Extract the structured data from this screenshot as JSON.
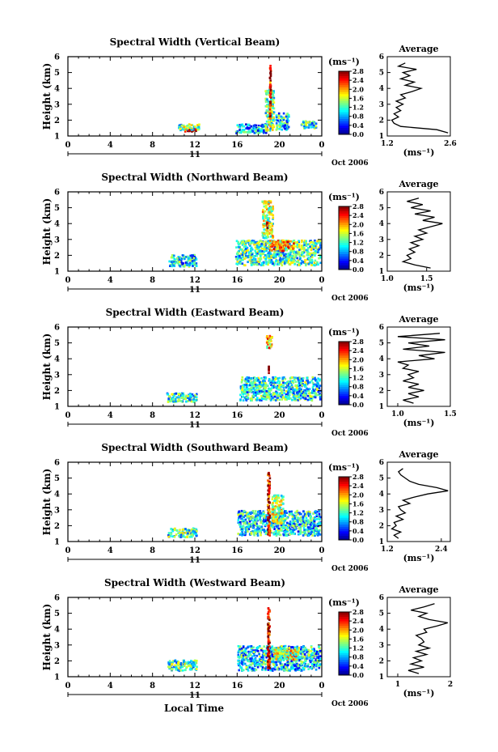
{
  "figure": {
    "x_axis_label": "Local Time",
    "date_label": "Oct 2006",
    "day_label": "11",
    "colorbar_unit": "(ms⁻¹)",
    "profile_title": "Average",
    "profile_unit": "(ms⁻¹)"
  },
  "chart_data": [
    {
      "type": "heatmap",
      "title": "Spectral Width (Vertical Beam)",
      "ylabel": "Height (km)",
      "xlabel": "Local Time",
      "xlim": [
        0,
        24
      ],
      "ylim": [
        1,
        6
      ],
      "x_ticks": [
        "0",
        "4",
        "8",
        "12",
        "16",
        "20",
        "0"
      ],
      "y_ticks": [
        "1",
        "2",
        "3",
        "4",
        "5",
        "6"
      ],
      "colorbar": {
        "unit": "(ms⁻¹)",
        "vmin": 0.0,
        "vmax": 2.8,
        "tick_labels": [
          "0.0",
          "0.4",
          "0.8",
          "1.2",
          "1.6",
          "2.0",
          "2.4",
          "2.8"
        ]
      },
      "patches": [
        {
          "x": [
            11.0,
            12.3
          ],
          "y": [
            1.2,
            1.5
          ],
          "level": 2.7
        },
        {
          "x": [
            10.4,
            12.6
          ],
          "y": [
            1.3,
            1.8
          ],
          "level": 1.3
        },
        {
          "x": [
            15.8,
            19.0
          ],
          "y": [
            1.1,
            1.8
          ],
          "level": 0.9
        },
        {
          "x": [
            18.6,
            19.6
          ],
          "y": [
            1.2,
            4.0
          ],
          "level": 1.4
        },
        {
          "x": [
            19.0,
            19.3
          ],
          "y": [
            2.0,
            5.5
          ],
          "level": 2.5
        },
        {
          "x": [
            19.6,
            21.0
          ],
          "y": [
            1.3,
            2.5
          ],
          "level": 1.0
        },
        {
          "x": [
            22.0,
            23.6
          ],
          "y": [
            1.4,
            2.0
          ],
          "level": 1.1
        }
      ],
      "profile": {
        "xlim": [
          1.2,
          2.6
        ],
        "x_ticks": [
          "1.2",
          "2.6"
        ],
        "height": [
          1.2,
          1.4,
          1.6,
          1.8,
          2.0,
          2.2,
          2.4,
          2.6,
          2.8,
          3.0,
          3.2,
          3.4,
          3.6,
          3.8,
          4.0,
          4.2,
          4.4,
          4.6,
          4.8,
          5.0,
          5.2,
          5.4,
          5.6
        ],
        "width": [
          2.55,
          2.3,
          1.5,
          1.35,
          1.3,
          1.45,
          1.35,
          1.5,
          1.4,
          1.55,
          1.4,
          1.6,
          1.5,
          1.75,
          1.95,
          1.6,
          1.8,
          1.5,
          1.7,
          1.55,
          1.85,
          1.45,
          1.6
        ]
      }
    },
    {
      "type": "heatmap",
      "title": "Spectral Width (Northward Beam)",
      "ylabel": "Height (km)",
      "xlabel": "Local Time",
      "xlim": [
        0,
        24
      ],
      "ylim": [
        1,
        6
      ],
      "x_ticks": [
        "0",
        "4",
        "8",
        "12",
        "16",
        "20",
        "0"
      ],
      "y_ticks": [
        "1",
        "2",
        "3",
        "4",
        "5",
        "6"
      ],
      "colorbar": {
        "unit": "(ms⁻¹)",
        "vmin": 0.0,
        "vmax": 2.8,
        "tick_labels": [
          "0.0",
          "0.4",
          "0.8",
          "1.2",
          "1.6",
          "2.0",
          "2.4",
          "2.8"
        ]
      },
      "patches": [
        {
          "x": [
            9.5,
            12.3
          ],
          "y": [
            1.2,
            2.1
          ],
          "level": 1.0
        },
        {
          "x": [
            15.8,
            24.0
          ],
          "y": [
            1.3,
            3.0
          ],
          "level": 1.2
        },
        {
          "x": [
            18.3,
            19.5
          ],
          "y": [
            3.0,
            5.5
          ],
          "level": 1.5
        },
        {
          "x": [
            18.7,
            19.0
          ],
          "y": [
            3.6,
            4.2
          ],
          "level": 2.7
        },
        {
          "x": [
            19.0,
            21.5
          ],
          "y": [
            2.2,
            3.0
          ],
          "level": 2.0
        }
      ],
      "profile": {
        "xlim": [
          1.0,
          1.8
        ],
        "x_ticks": [
          "1.0",
          "1.5"
        ],
        "height": [
          1.2,
          1.4,
          1.6,
          1.8,
          2.0,
          2.2,
          2.4,
          2.6,
          2.8,
          3.0,
          3.2,
          3.4,
          3.6,
          3.8,
          4.0,
          4.2,
          4.4,
          4.6,
          4.8,
          5.0,
          5.2,
          5.4,
          5.6
        ],
        "width": [
          1.55,
          1.35,
          1.2,
          1.3,
          1.25,
          1.35,
          1.28,
          1.4,
          1.3,
          1.45,
          1.35,
          1.5,
          1.4,
          1.55,
          1.7,
          1.45,
          1.6,
          1.35,
          1.55,
          1.3,
          1.45,
          1.25,
          1.4
        ]
      }
    },
    {
      "type": "heatmap",
      "title": "Spectral Width (Eastward Beam)",
      "ylabel": "Height (km)",
      "xlabel": "Local Time",
      "xlim": [
        0,
        24
      ],
      "ylim": [
        1,
        6
      ],
      "x_ticks": [
        "0",
        "4",
        "8",
        "12",
        "16",
        "20",
        "0"
      ],
      "y_ticks": [
        "1",
        "2",
        "3",
        "4",
        "5",
        "6"
      ],
      "colorbar": {
        "unit": "(ms⁻¹)",
        "vmin": 0.0,
        "vmax": 2.8,
        "tick_labels": [
          "0.0",
          "0.4",
          "0.8",
          "1.2",
          "1.6",
          "2.0",
          "2.4",
          "2.8"
        ]
      },
      "patches": [
        {
          "x": [
            9.3,
            12.3
          ],
          "y": [
            1.2,
            1.9
          ],
          "level": 1.1
        },
        {
          "x": [
            16.2,
            24.0
          ],
          "y": [
            1.3,
            2.9
          ],
          "level": 1.1
        },
        {
          "x": [
            18.7,
            19.4
          ],
          "y": [
            4.6,
            5.5
          ],
          "level": 1.9
        },
        {
          "x": [
            18.9,
            19.1
          ],
          "y": [
            3.0,
            3.6
          ],
          "level": 2.6
        }
      ],
      "profile": {
        "xlim": [
          0.9,
          1.5
        ],
        "x_ticks": [
          "1.0",
          "1.5"
        ],
        "height": [
          1.2,
          1.4,
          1.6,
          1.8,
          2.0,
          2.2,
          2.4,
          2.6,
          2.8,
          3.0,
          3.2,
          3.4,
          3.6,
          3.8,
          4.0,
          4.2,
          4.4,
          4.6,
          4.8,
          5.0,
          5.2,
          5.4,
          5.6
        ],
        "width": [
          1.15,
          1.05,
          1.2,
          1.1,
          1.25,
          1.1,
          1.2,
          1.05,
          1.15,
          1.1,
          1.2,
          1.05,
          1.1,
          1.0,
          1.35,
          1.2,
          1.45,
          1.05,
          1.3,
          1.1,
          1.45,
          1.0,
          1.4
        ]
      }
    },
    {
      "type": "heatmap",
      "title": "Spectral Width (Southward Beam)",
      "ylabel": "Height (km)",
      "xlabel": "Local Time",
      "xlim": [
        0,
        24
      ],
      "ylim": [
        1,
        6
      ],
      "x_ticks": [
        "0",
        "4",
        "8",
        "12",
        "16",
        "20",
        "0"
      ],
      "y_ticks": [
        "1",
        "2",
        "3",
        "4",
        "5",
        "6"
      ],
      "colorbar": {
        "unit": "(ms⁻¹)",
        "vmin": 0.0,
        "vmax": 2.8,
        "tick_labels": [
          "0.0",
          "0.4",
          "0.8",
          "1.2",
          "1.6",
          "2.0",
          "2.4",
          "2.8"
        ]
      },
      "patches": [
        {
          "x": [
            9.4,
            12.3
          ],
          "y": [
            1.2,
            1.9
          ],
          "level": 1.2
        },
        {
          "x": [
            16.0,
            24.0
          ],
          "y": [
            1.3,
            3.0
          ],
          "level": 1.0
        },
        {
          "x": [
            18.8,
            19.2
          ],
          "y": [
            1.3,
            5.4
          ],
          "level": 2.6
        },
        {
          "x": [
            19.2,
            20.5
          ],
          "y": [
            2.0,
            4.0
          ],
          "level": 1.5
        }
      ],
      "profile": {
        "xlim": [
          1.2,
          2.6
        ],
        "x_ticks": [
          "1.2",
          "2.4"
        ],
        "height": [
          1.2,
          1.4,
          1.6,
          1.8,
          2.0,
          2.2,
          2.4,
          2.6,
          2.8,
          3.0,
          3.2,
          3.4,
          3.6,
          3.8,
          4.0,
          4.2,
          4.4,
          4.6,
          4.8,
          5.0,
          5.2,
          5.4,
          5.6
        ],
        "width": [
          1.45,
          1.35,
          1.5,
          1.3,
          1.4,
          1.35,
          1.55,
          1.4,
          1.6,
          1.5,
          1.45,
          1.7,
          1.55,
          1.8,
          2.1,
          2.55,
          2.3,
          1.9,
          1.7,
          1.6,
          1.5,
          1.45,
          1.55
        ]
      }
    },
    {
      "type": "heatmap",
      "title": "Spectral Width (Westward Beam)",
      "ylabel": "Height (km)",
      "xlabel": "Local Time",
      "xlim": [
        0,
        24
      ],
      "ylim": [
        1,
        6
      ],
      "x_ticks": [
        "0",
        "4",
        "8",
        "12",
        "16",
        "20",
        "0"
      ],
      "y_ticks": [
        "1",
        "2",
        "3",
        "4",
        "5",
        "6"
      ],
      "colorbar": {
        "unit": "(ms⁻¹)",
        "vmin": 0.0,
        "vmax": 2.8,
        "tick_labels": [
          "0.0",
          "0.4",
          "0.8",
          "1.2",
          "1.6",
          "2.0",
          "2.4",
          "2.8"
        ]
      },
      "patches": [
        {
          "x": [
            9.4,
            12.3
          ],
          "y": [
            1.3,
            2.1
          ],
          "level": 1.2
        },
        {
          "x": [
            16.0,
            24.0
          ],
          "y": [
            1.3,
            3.0
          ],
          "level": 1.0
        },
        {
          "x": [
            18.8,
            19.2
          ],
          "y": [
            1.4,
            5.4
          ],
          "level": 2.6
        },
        {
          "x": [
            19.3,
            22.0
          ],
          "y": [
            2.0,
            2.9
          ],
          "level": 1.6
        }
      ],
      "profile": {
        "xlim": [
          0.8,
          2.0
        ],
        "x_ticks": [
          "1",
          "2"
        ],
        "height": [
          1.2,
          1.4,
          1.6,
          1.8,
          2.0,
          2.2,
          2.4,
          2.6,
          2.8,
          3.0,
          3.2,
          3.4,
          3.6,
          3.8,
          4.0,
          4.2,
          4.4,
          4.6,
          4.8,
          5.0,
          5.2,
          5.4,
          5.6
        ],
        "width": [
          1.4,
          1.2,
          1.5,
          1.25,
          1.45,
          1.3,
          1.55,
          1.35,
          1.6,
          1.4,
          1.5,
          1.45,
          1.35,
          1.55,
          1.5,
          1.75,
          1.95,
          1.6,
          1.4,
          1.55,
          1.25,
          1.5,
          1.7
        ]
      }
    }
  ]
}
